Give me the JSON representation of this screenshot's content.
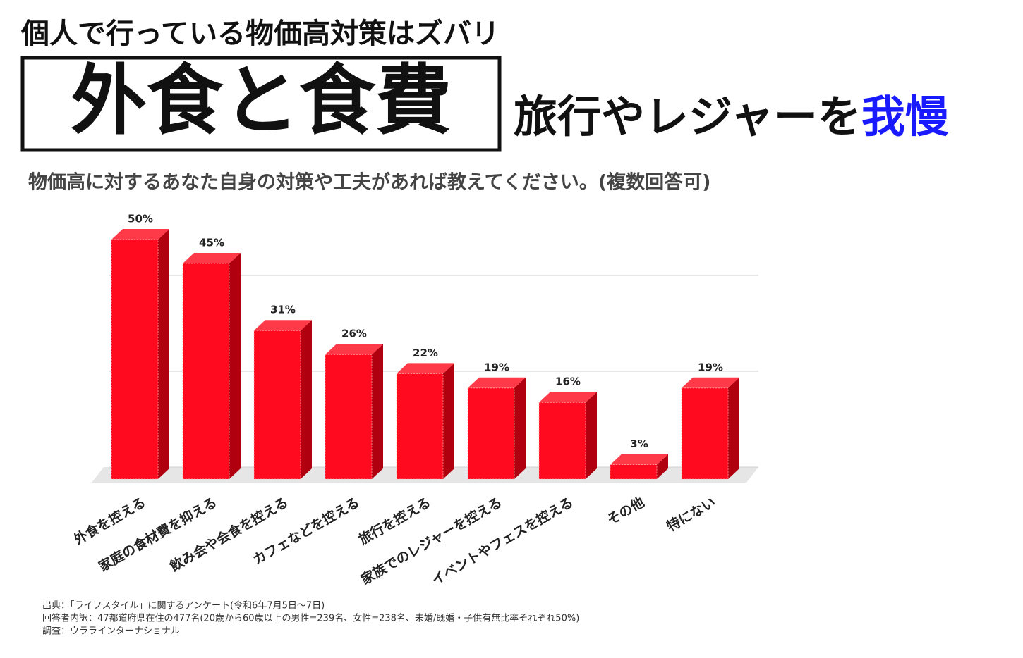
{
  "header": {
    "title": "個人で行っている物価高対策はズバリ",
    "headline_boxed": "外食と食費",
    "headline_rest": "旅行やレジャーを",
    "headline_emphasis": "我慢"
  },
  "chart_data": {
    "type": "bar",
    "title": "物価高に対するあなた自身の対策や工夫があれば教えてください。(複数回答可)",
    "categories": [
      "外食を控える",
      "家庭の食材費を抑える",
      "飲み会や会食を控える",
      "カフェなどを控える",
      "旅行を控える",
      "家族でのレジャーを控える",
      "イベントやフェスを控える",
      "その他",
      "特にない"
    ],
    "values": [
      50,
      45,
      31,
      26,
      22,
      19,
      16,
      3,
      19
    ],
    "value_labels": [
      "50%",
      "45%",
      "31%",
      "26%",
      "22%",
      "19%",
      "16%",
      "3%",
      "19%"
    ],
    "color": "#ff0a1e",
    "ylim": [
      0,
      50
    ],
    "yticks": [
      0,
      20,
      40
    ],
    "grid": true
  },
  "footnotes": [
    "出典：「ライフスタイル」に関するアンケート(令和6年7月5日～7日)",
    "回答者内訳：47都道府県在住の477名(20歳から60歳以上の男性=239名、女性=238名、未婚/既婚・子供有無比率それぞれ50%)",
    "調査：ウララインターナショナル"
  ]
}
